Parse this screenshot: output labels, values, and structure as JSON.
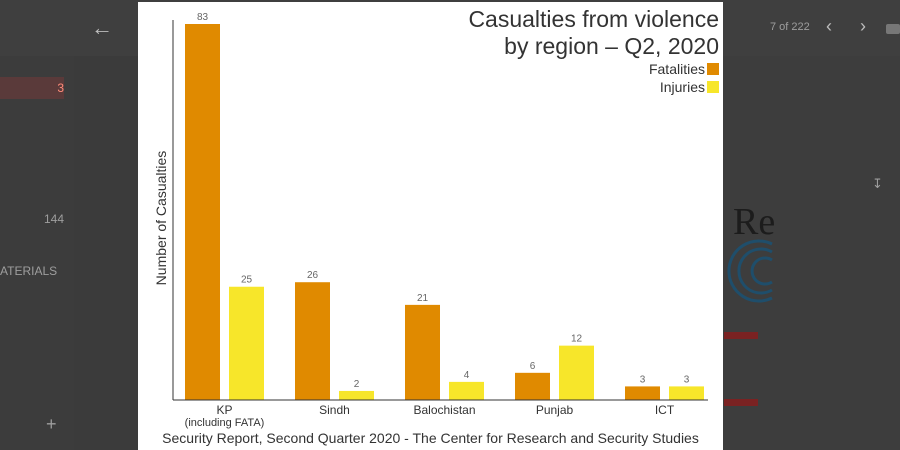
{
  "viewer": {
    "pager": "7 of 222",
    "sidebar_count_1": "3",
    "sidebar_count_2": "144",
    "sidebar_label": "ATERIALS",
    "logo_text": "Re",
    "back_icon": "arrow-left-icon",
    "prev_icon": "chevron-left-icon",
    "next_icon": "chevron-right-icon",
    "download_icon": "download-icon"
  },
  "chart": {
    "title": "Casualties from violence\nby region – Q2, 2020",
    "ylabel": "Number of Casualties",
    "source": "Security Report, Second Quarter 2020 - The Center for Research and Security Studies",
    "legend": [
      {
        "name": "Fatalities",
        "color": "#e08a00"
      },
      {
        "name": "Injuries",
        "color": "#f7e62a"
      }
    ]
  },
  "chart_data": {
    "type": "bar",
    "title": "Casualties from violence by region – Q2, 2020",
    "ylabel": "Number of Casualties",
    "xlabel": "",
    "categories": [
      "KP\n(including FATA)",
      "Sindh",
      "Balochistan",
      "Punjab",
      "ICT"
    ],
    "series": [
      {
        "name": "Fatalities",
        "values": [
          83,
          26,
          21,
          6,
          3
        ],
        "color": "#e08a00"
      },
      {
        "name": "Injuries",
        "values": [
          25,
          2,
          4,
          12,
          3
        ],
        "color": "#f7e62a"
      }
    ],
    "ylim": [
      0,
      83
    ],
    "grid": false,
    "legend_position": "top-right",
    "data_labels": true
  }
}
